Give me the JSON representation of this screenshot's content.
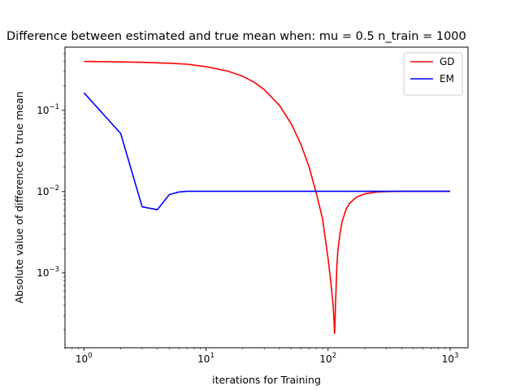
{
  "chart_data": {
    "type": "line",
    "title": "Difference between estimated and true mean when: mu = 0.5 n_train = 1000",
    "xlabel": "iterations for Training",
    "ylabel": "Absolute value of difference to true mean",
    "xscale": "log",
    "yscale": "log",
    "xlim": [
      0.7,
      1400
    ],
    "ylim": [
      0.00012,
      0.6
    ],
    "x_ticks": [
      {
        "value": 1,
        "base": "10",
        "exp": "0"
      },
      {
        "value": 10,
        "base": "10",
        "exp": "1"
      },
      {
        "value": 100,
        "base": "10",
        "exp": "2"
      },
      {
        "value": 1000,
        "base": "10",
        "exp": "3"
      }
    ],
    "y_ticks": [
      {
        "value": 0.001,
        "base": "10",
        "exp": "−3"
      },
      {
        "value": 0.01,
        "base": "10",
        "exp": "−2"
      },
      {
        "value": 0.1,
        "base": "10",
        "exp": "−1"
      }
    ],
    "grid": false,
    "legend_position": "upper right",
    "series": [
      {
        "name": "GD",
        "color": "#ff0000",
        "x": [
          1,
          2,
          3,
          5,
          7,
          10,
          15,
          20,
          25,
          30,
          40,
          50,
          60,
          70,
          80,
          90,
          100,
          105,
          110,
          112,
          113,
          114,
          115,
          118,
          120,
          125,
          130,
          140,
          150,
          170,
          200,
          250,
          300,
          400,
          500,
          700,
          1000
        ],
        "y": [
          0.4,
          0.395,
          0.39,
          0.38,
          0.37,
          0.345,
          0.305,
          0.263,
          0.22,
          0.18,
          0.115,
          0.068,
          0.038,
          0.02,
          0.0096,
          0.0047,
          0.0015,
          0.0008,
          0.0004,
          0.00025,
          0.00018,
          0.00025,
          0.0004,
          0.0012,
          0.0018,
          0.003,
          0.0042,
          0.006,
          0.0072,
          0.0085,
          0.0094,
          0.0099,
          0.01,
          0.0101,
          0.0101,
          0.0101,
          0.0101
        ]
      },
      {
        "name": "EM",
        "color": "#0000ff",
        "x": [
          1,
          2,
          3,
          4,
          5,
          6,
          7,
          8,
          10,
          20,
          50,
          100,
          200,
          500,
          1000
        ],
        "y": [
          0.165,
          0.052,
          0.0065,
          0.006,
          0.0092,
          0.0099,
          0.0101,
          0.0101,
          0.0101,
          0.0101,
          0.0101,
          0.0101,
          0.0101,
          0.0101,
          0.0101
        ]
      }
    ]
  }
}
